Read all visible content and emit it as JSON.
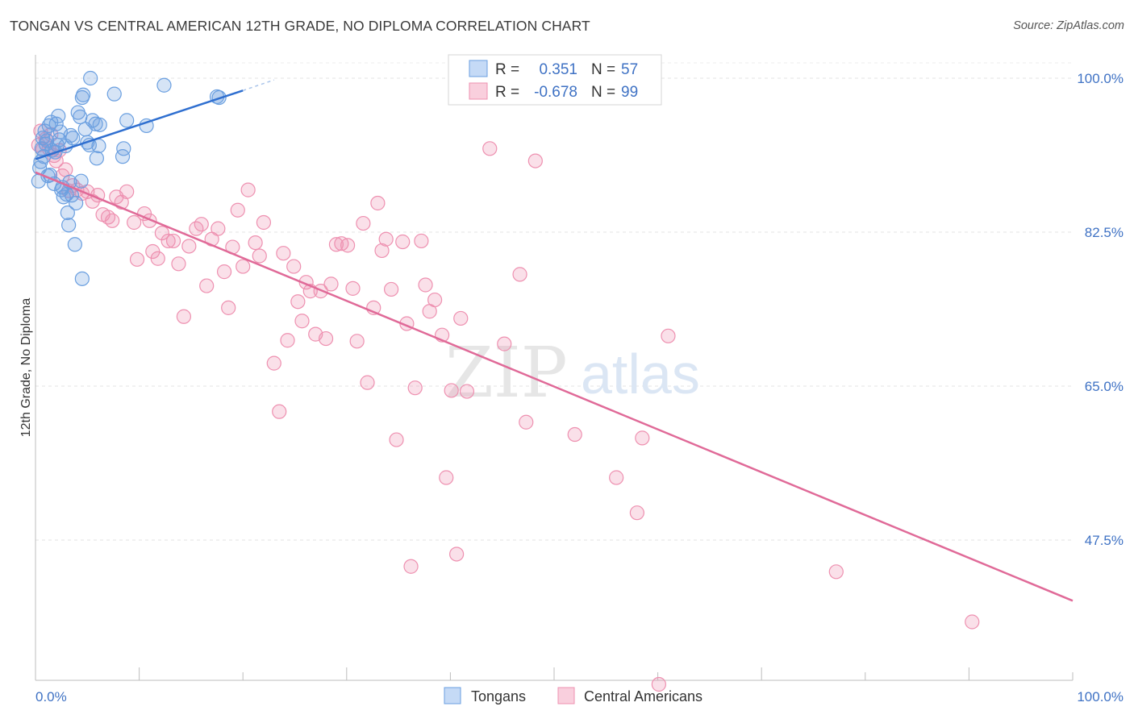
{
  "title": "TONGAN VS CENTRAL AMERICAN 12TH GRADE, NO DIPLOMA CORRELATION CHART",
  "source": "Source: ZipAtlas.com",
  "watermark": {
    "zip": "ZIP",
    "atlas": "atlas"
  },
  "colors": {
    "blue": "#6a9fe0",
    "pink": "#ee90b0",
    "blue_line": "#2f6fd0",
    "pink_line": "#e06a98",
    "tick_text": "#3f72c4"
  },
  "chart_data": {
    "type": "scatter",
    "ylabel": "12th Grade, No Diploma",
    "xlabel": "",
    "xlim": [
      0,
      100
    ],
    "ylim": [
      30,
      102
    ],
    "x_tick_labels": [
      "0.0%",
      "100.0%"
    ],
    "y_ticks": [
      47.5,
      65.0,
      82.5,
      100.0
    ],
    "y_tick_labels": [
      "47.5%",
      "65.0%",
      "82.5%",
      "100.0%"
    ],
    "grid": true,
    "legend": {
      "position": "top-center",
      "rows": [
        {
          "r_label": "R =",
          "r_value": "0.351",
          "n_label": "N =",
          "n_value": "57"
        },
        {
          "r_label": "R =",
          "r_value": "-0.678",
          "n_label": "N =",
          "n_value": "99"
        }
      ]
    },
    "series": [
      {
        "name": "Tongans",
        "color": "#6a9fe0",
        "trend": {
          "x": [
            0,
            20
          ],
          "y": [
            90.8,
            98.6
          ],
          "dash_to": [
            23,
            99.8
          ]
        },
        "points": [
          [
            0.3,
            88.3
          ],
          [
            0.4,
            89.8
          ],
          [
            0.5,
            90.5
          ],
          [
            0.6,
            92.0
          ],
          [
            0.7,
            93.2
          ],
          [
            0.9,
            94.0
          ],
          [
            1.0,
            92.5
          ],
          [
            1.2,
            88.9
          ],
          [
            1.3,
            94.6
          ],
          [
            1.5,
            95.0
          ],
          [
            1.6,
            91.8
          ],
          [
            1.8,
            88.0
          ],
          [
            2.0,
            94.8
          ],
          [
            2.1,
            92.4
          ],
          [
            2.2,
            95.7
          ],
          [
            2.4,
            93.9
          ],
          [
            2.5,
            87.3
          ],
          [
            2.7,
            86.5
          ],
          [
            2.9,
            92.3
          ],
          [
            3.0,
            86.8
          ],
          [
            3.1,
            84.7
          ],
          [
            3.2,
            83.3
          ],
          [
            3.3,
            88.2
          ],
          [
            3.5,
            86.7
          ],
          [
            3.6,
            93.2
          ],
          [
            3.8,
            81.1
          ],
          [
            3.9,
            85.8
          ],
          [
            4.1,
            96.1
          ],
          [
            4.3,
            95.6
          ],
          [
            4.4,
            88.3
          ],
          [
            4.5,
            97.8
          ],
          [
            4.6,
            98.1
          ],
          [
            4.8,
            94.2
          ],
          [
            4.5,
            77.2
          ],
          [
            5.0,
            92.7
          ],
          [
            5.2,
            92.4
          ],
          [
            5.3,
            100.0
          ],
          [
            5.5,
            95.2
          ],
          [
            5.9,
            90.9
          ],
          [
            6.1,
            92.3
          ],
          [
            6.2,
            94.7
          ],
          [
            7.6,
            98.2
          ],
          [
            8.4,
            91.1
          ],
          [
            8.5,
            92.0
          ],
          [
            8.8,
            95.2
          ],
          [
            10.7,
            94.6
          ],
          [
            12.4,
            99.2
          ],
          [
            17.5,
            97.9
          ],
          [
            17.7,
            97.8
          ],
          [
            1.1,
            92.9
          ],
          [
            1.9,
            91.6
          ],
          [
            2.3,
            93.0
          ],
          [
            0.8,
            91.1
          ],
          [
            1.4,
            89.0
          ],
          [
            2.6,
            87.6
          ],
          [
            3.4,
            93.5
          ],
          [
            5.8,
            94.8
          ]
        ]
      },
      {
        "name": "Central Americans",
        "color": "#ee90b0",
        "trend": {
          "x": [
            0,
            100
          ],
          "y": [
            89.3,
            40.6
          ]
        },
        "points": [
          [
            0.3,
            92.4
          ],
          [
            0.5,
            94.0
          ],
          [
            0.7,
            91.9
          ],
          [
            1.0,
            93.1
          ],
          [
            1.3,
            92.0
          ],
          [
            1.5,
            93.6
          ],
          [
            1.8,
            91.2
          ],
          [
            2.0,
            90.6
          ],
          [
            2.3,
            91.8
          ],
          [
            2.6,
            88.9
          ],
          [
            2.9,
            89.6
          ],
          [
            3.2,
            87.2
          ],
          [
            3.6,
            87.8
          ],
          [
            4.0,
            87.3
          ],
          [
            4.5,
            86.9
          ],
          [
            5.0,
            87.1
          ],
          [
            5.5,
            86.0
          ],
          [
            6.0,
            86.7
          ],
          [
            6.5,
            84.5
          ],
          [
            7.0,
            84.2
          ],
          [
            7.4,
            83.8
          ],
          [
            7.8,
            86.5
          ],
          [
            8.3,
            85.9
          ],
          [
            8.8,
            87.1
          ],
          [
            9.5,
            83.6
          ],
          [
            9.8,
            79.4
          ],
          [
            10.5,
            84.6
          ],
          [
            11.0,
            83.8
          ],
          [
            11.3,
            80.3
          ],
          [
            11.8,
            79.5
          ],
          [
            12.2,
            82.4
          ],
          [
            12.8,
            81.5
          ],
          [
            13.3,
            81.5
          ],
          [
            13.8,
            78.9
          ],
          [
            14.3,
            72.9
          ],
          [
            14.8,
            80.9
          ],
          [
            15.5,
            82.9
          ],
          [
            16.0,
            83.4
          ],
          [
            16.5,
            76.4
          ],
          [
            17.0,
            81.7
          ],
          [
            17.6,
            82.9
          ],
          [
            18.2,
            78.0
          ],
          [
            18.6,
            73.9
          ],
          [
            19.0,
            80.8
          ],
          [
            19.5,
            85.0
          ],
          [
            20.0,
            78.6
          ],
          [
            20.5,
            87.3
          ],
          [
            21.2,
            81.3
          ],
          [
            21.6,
            79.8
          ],
          [
            22.0,
            83.6
          ],
          [
            23.0,
            67.6
          ],
          [
            23.5,
            62.1
          ],
          [
            23.9,
            80.1
          ],
          [
            24.3,
            70.2
          ],
          [
            24.9,
            78.6
          ],
          [
            25.3,
            74.6
          ],
          [
            25.7,
            72.4
          ],
          [
            26.1,
            76.8
          ],
          [
            26.5,
            75.8
          ],
          [
            27.0,
            70.9
          ],
          [
            27.5,
            75.8
          ],
          [
            28.0,
            70.4
          ],
          [
            28.5,
            76.6
          ],
          [
            29.0,
            81.1
          ],
          [
            29.5,
            81.2
          ],
          [
            30.1,
            81.0
          ],
          [
            30.6,
            76.1
          ],
          [
            31.0,
            70.1
          ],
          [
            31.6,
            83.5
          ],
          [
            32.0,
            65.4
          ],
          [
            32.6,
            73.9
          ],
          [
            33.0,
            85.8
          ],
          [
            33.4,
            80.4
          ],
          [
            33.8,
            81.7
          ],
          [
            34.3,
            76.0
          ],
          [
            34.8,
            58.9
          ],
          [
            35.4,
            81.4
          ],
          [
            35.8,
            72.1
          ],
          [
            36.2,
            44.5
          ],
          [
            36.6,
            64.8
          ],
          [
            37.2,
            81.5
          ],
          [
            37.6,
            76.5
          ],
          [
            38.0,
            73.5
          ],
          [
            38.5,
            74.8
          ],
          [
            39.2,
            70.8
          ],
          [
            39.6,
            54.6
          ],
          [
            40.1,
            64.5
          ],
          [
            40.6,
            45.9
          ],
          [
            41.0,
            72.7
          ],
          [
            41.6,
            64.4
          ],
          [
            43.8,
            92.0
          ],
          [
            45.2,
            69.8
          ],
          [
            46.7,
            77.7
          ],
          [
            47.3,
            60.9
          ],
          [
            48.2,
            90.6
          ],
          [
            52.0,
            59.5
          ],
          [
            56.0,
            54.6
          ],
          [
            58.0,
            50.6
          ],
          [
            60.1,
            31.1
          ]
        ],
        "extra_points": [
          [
            58.5,
            59.1
          ],
          [
            61.0,
            70.7
          ],
          [
            77.2,
            43.9
          ],
          [
            90.3,
            38.2
          ]
        ]
      }
    ]
  },
  "bottom_legend": {
    "items": [
      "Tongans",
      "Central Americans"
    ]
  }
}
